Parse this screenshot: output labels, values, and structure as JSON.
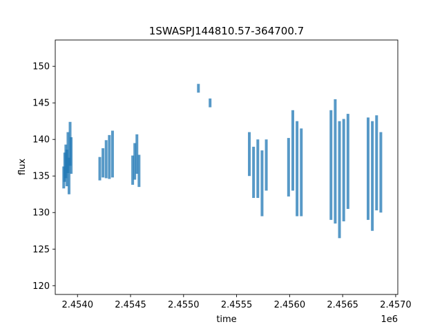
{
  "chart_data": {
    "type": "scatter",
    "title": "1SWASPJ144810.57-364700.7",
    "xlabel": "time",
    "ylabel": "flux",
    "x_offset_label": "1e6",
    "xlim": [
      2453790,
      2457020
    ],
    "ylim": [
      118.8,
      153.6
    ],
    "x_ticks": [
      2454000,
      2454500,
      2455000,
      2455500,
      2456000,
      2456500,
      2457000
    ],
    "x_tick_labels": [
      "2.4540",
      "2.4545",
      "2.4550",
      "2.4555",
      "2.4560",
      "2.4565",
      "2.4570"
    ],
    "y_ticks": [
      120,
      125,
      130,
      135,
      140,
      145,
      150
    ],
    "y_tick_labels": [
      "120",
      "125",
      "130",
      "135",
      "140",
      "145",
      "150"
    ],
    "grid": false,
    "marker_color": "#1f77b4",
    "series": [
      {
        "x": [
          2453870,
          2453880,
          2453890,
          2453900,
          2453910,
          2453920,
          2453930,
          2453940,
          2454210,
          2454240,
          2454270,
          2454300,
          2454330,
          2454520,
          2454540,
          2454560,
          2454580,
          2455140,
          2455250,
          2455620,
          2455660,
          2455700,
          2455740,
          2455780,
          2455990,
          2456030,
          2456070,
          2456110,
          2456390,
          2456430,
          2456470,
          2456510,
          2456550,
          2456740,
          2456780,
          2456820,
          2456860
        ],
        "y": [
          134.8,
          136.2,
          137.0,
          136.1,
          138.2,
          135.0,
          139.4,
          137.8,
          136.0,
          136.8,
          137.3,
          137.6,
          138.0,
          135.8,
          137.0,
          138.0,
          135.7,
          147.0,
          145.0,
          138.0,
          135.5,
          136.0,
          134.0,
          136.5,
          136.2,
          138.5,
          136.0,
          135.5,
          136.5,
          137.0,
          134.5,
          135.8,
          137.0,
          136.0,
          135.0,
          136.8,
          135.5
        ],
        "spread": [
          1.5,
          2.0,
          2.3,
          2.5,
          2.8,
          2.5,
          3.0,
          2.5,
          1.6,
          2.0,
          2.6,
          3.0,
          3.2,
          2.0,
          2.5,
          2.7,
          2.2,
          0.6,
          0.6,
          3.0,
          3.5,
          4.0,
          4.5,
          3.5,
          4.0,
          5.5,
          6.5,
          6.0,
          7.5,
          8.5,
          8.0,
          7.0,
          6.5,
          7.0,
          7.5,
          6.5,
          5.5
        ]
      }
    ]
  }
}
